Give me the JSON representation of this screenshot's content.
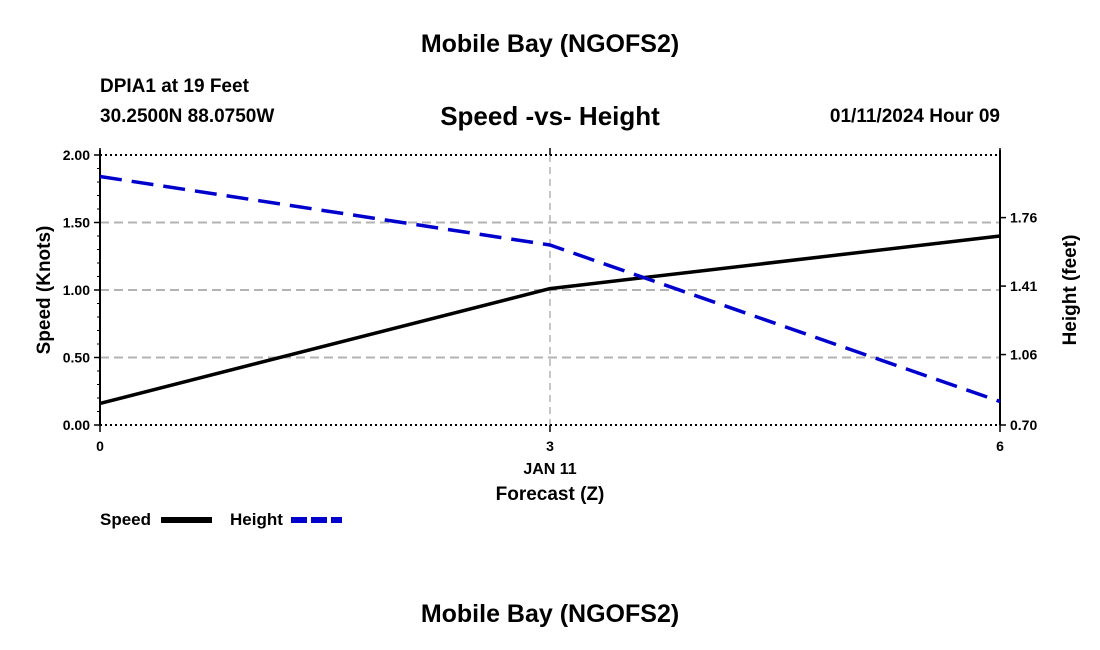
{
  "header": {
    "title": "Mobile Bay (NGOFS2)",
    "station": "DPIA1 at 19 Feet",
    "coords": "30.2500N  88.0750W",
    "subtitle": "Speed -vs- Height",
    "datetime": "01/11/2024 Hour 09"
  },
  "footer": {
    "title": "Mobile Bay (NGOFS2)"
  },
  "chart_data": {
    "type": "line",
    "title": "Speed -vs- Height",
    "xlabel": "Forecast (Z)",
    "date_label": "JAN 11",
    "ylabel": "Speed (Knots)",
    "y2label": "Height (feet)",
    "x": [
      0,
      3,
      6
    ],
    "xticks": [
      "0",
      "3",
      "6"
    ],
    "xlim": [
      0,
      6
    ],
    "ylim": [
      0,
      2
    ],
    "yticks": [
      "0.00",
      "0.50",
      "1.00",
      "1.50",
      "2.00"
    ],
    "y2lim": [
      0.7,
      2.08
    ],
    "y2ticks": [
      "0.70",
      "1.06",
      "1.41",
      "1.76"
    ],
    "grid": true,
    "series": [
      {
        "name": "Speed",
        "axis": "left",
        "style": "solid",
        "color": "#000000",
        "values": [
          0.16,
          1.01,
          1.4
        ]
      },
      {
        "name": "Height",
        "axis": "right",
        "style": "dashed",
        "color": "#0000cc",
        "values": [
          1.97,
          1.62,
          0.82
        ]
      }
    ],
    "legend": {
      "items": [
        "Speed",
        "Height"
      ],
      "placement": "bottom-left"
    }
  }
}
